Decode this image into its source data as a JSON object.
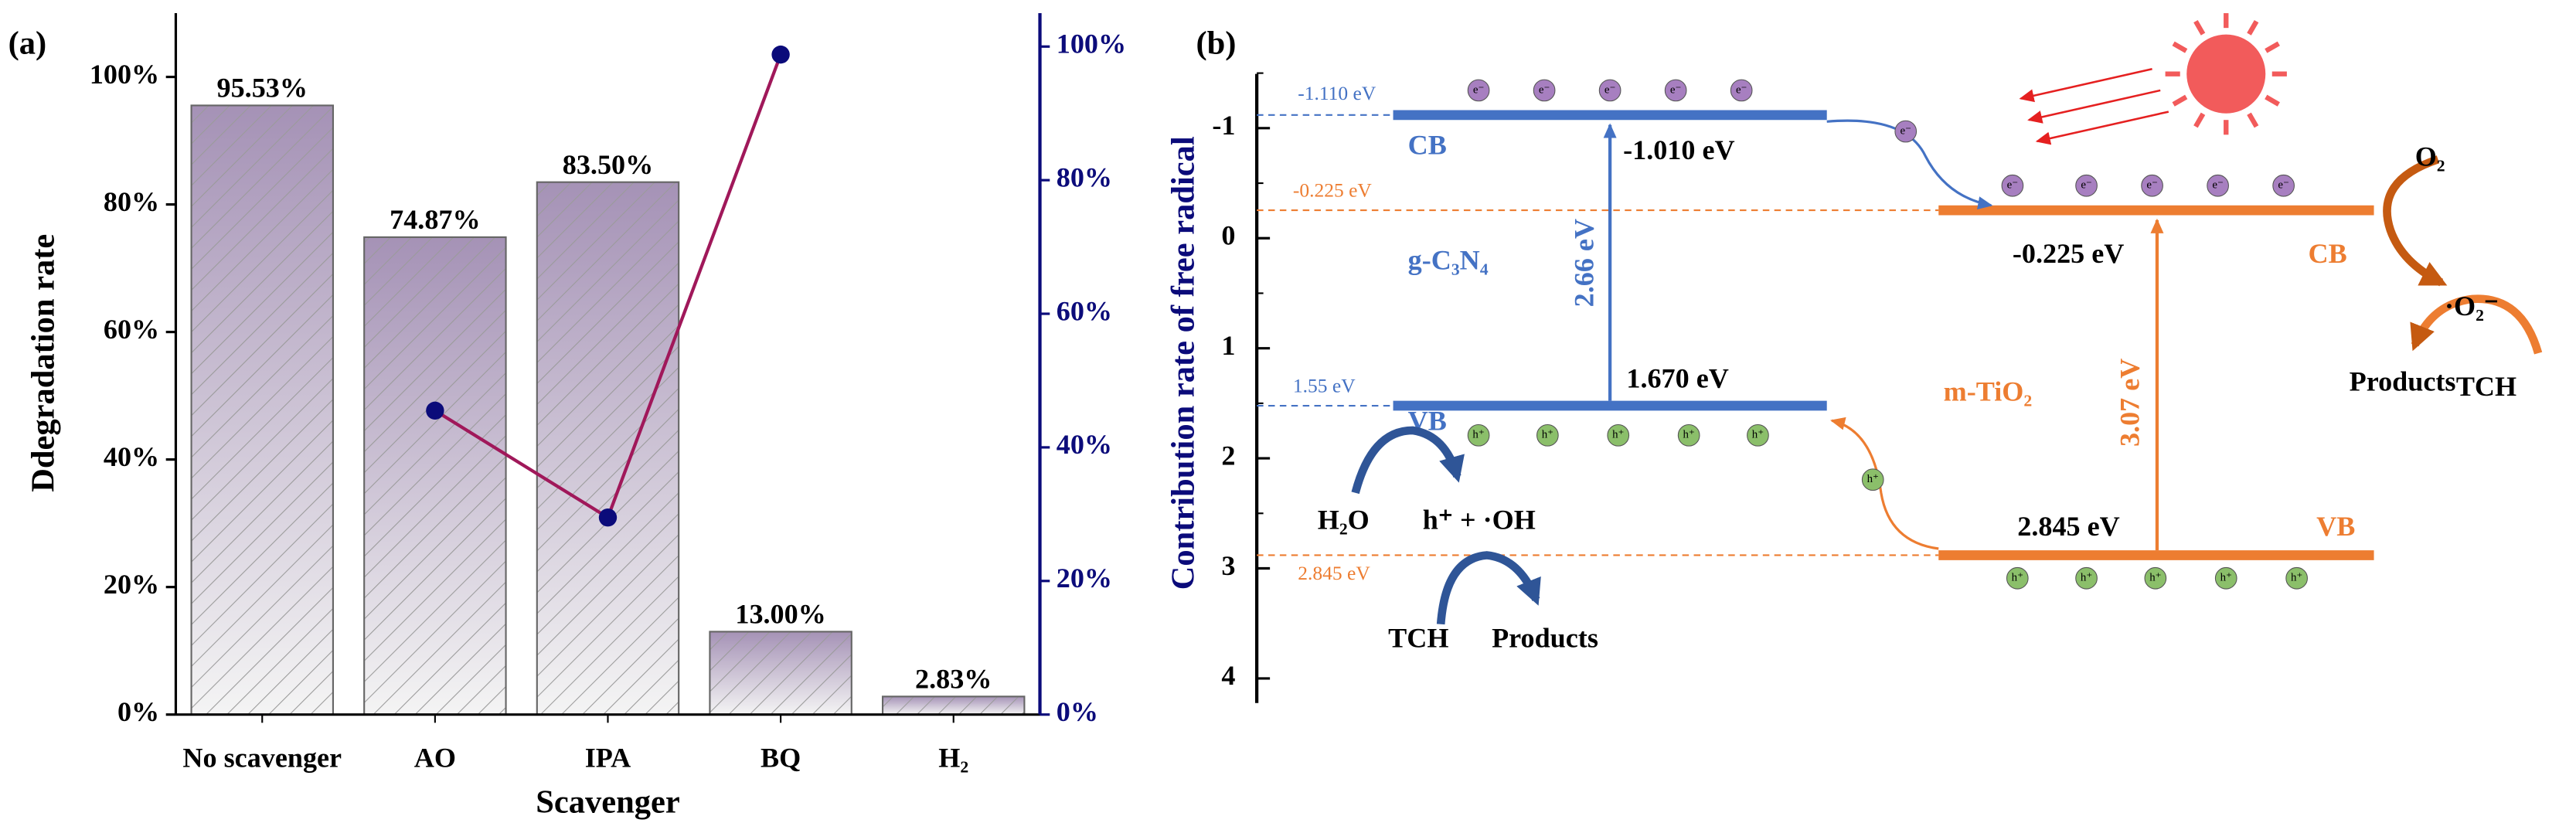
{
  "chart_data": {
    "type": "bar",
    "panel_label": "(a)",
    "x_label": "Scavenger",
    "y_label": "Ddegradation rate",
    "y2_label": "Contribution rate of free radical",
    "categories": [
      "No scavenger",
      "AO",
      "IPA",
      "BQ",
      "H₂"
    ],
    "series": [
      {
        "name": "Degradation rate",
        "color": "#a592b6",
        "values": [
          95.53,
          74.87,
          83.5,
          13.0,
          2.83
        ],
        "value_labels": [
          "95.53%",
          "74.87%",
          "83.50%",
          "13.00%",
          "2.83%"
        ]
      },
      {
        "name": "Contribution rate of free radical",
        "type": "line",
        "axis": "y2",
        "color": "#a0185a",
        "marker_color": "#0b0b7a",
        "values": [
          null,
          45.5,
          29.5,
          98.8,
          null
        ]
      }
    ],
    "ylim": [
      0,
      110
    ],
    "yticks": [
      {
        "value": 0,
        "label": "0%"
      },
      {
        "value": 20,
        "label": "20%"
      },
      {
        "value": 40,
        "label": "40%"
      },
      {
        "value": 60,
        "label": "60%"
      },
      {
        "value": 80,
        "label": "80%"
      },
      {
        "value": 100,
        "label": "100%"
      }
    ],
    "y2lim": [
      0,
      105
    ],
    "y2ticks": [
      {
        "value": 0,
        "label": "0%"
      },
      {
        "value": 20,
        "label": "20%"
      },
      {
        "value": 40,
        "label": "40%"
      },
      {
        "value": 60,
        "label": "60%"
      },
      {
        "value": 80,
        "label": "80%"
      },
      {
        "value": 100,
        "label": "100%"
      }
    ],
    "y2_color": "#0b0b7a",
    "grid": false
  },
  "diagram": {
    "panel_label": "(b)",
    "energy_ticks": [
      -1,
      0,
      1,
      2,
      3,
      4
    ],
    "electron": "e⁻",
    "hole": "h⁺",
    "gcn": {
      "name": "g-C₃N₄",
      "cb": "CB",
      "vb": "VB",
      "cb_left": "-1.110 eV",
      "cb_right": "-1.010 eV",
      "vb_left": "1.55 eV",
      "vb_right": "1.670 eV",
      "gap": "2.66 eV"
    },
    "tio2": {
      "name": "m-TiO₂",
      "cb": "CB",
      "vb": "VB",
      "cb_left": "-0.225 eV",
      "cb_right": "-0.225 eV",
      "vb_left": "2.845 eV",
      "vb_right": "2.845 eV",
      "gap": "3.07 eV"
    },
    "reactions": {
      "h2o": "H₂O",
      "oh": "h⁺ + ·OH",
      "tch1": "TCH",
      "products1": "Products",
      "o2": "O₂",
      "superoxide": "·O₂⁻",
      "products2": "Products",
      "tch2": "TCH"
    }
  }
}
